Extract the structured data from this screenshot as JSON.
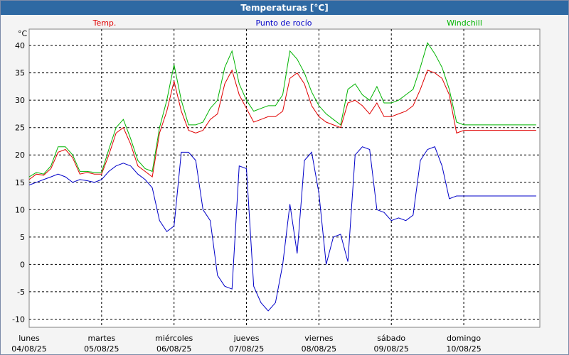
{
  "window": {
    "title": "Temperaturas [°C]"
  },
  "chart_data": {
    "type": "line",
    "title": "Temperaturas [°C]",
    "unit_label": "°C",
    "ylim": [
      -11.5,
      43
    ],
    "y_ticks": [
      -10,
      -5,
      0,
      5,
      10,
      15,
      20,
      25,
      30,
      35,
      40
    ],
    "x_range": [
      0,
      7.05
    ],
    "grid": true,
    "days": [
      {
        "name": "lunes",
        "date": "04/08/25"
      },
      {
        "name": "martes",
        "date": "05/08/25"
      },
      {
        "name": "miércoles",
        "date": "06/08/25"
      },
      {
        "name": "jueves",
        "date": "07/08/25"
      },
      {
        "name": "viernes",
        "date": "08/08/25"
      },
      {
        "name": "sábado",
        "date": "09/08/25"
      },
      {
        "name": "domingo",
        "date": "10/08/25"
      }
    ],
    "series": [
      {
        "name": "Temp.",
        "color": "#e00000",
        "x": [
          0,
          0.1,
          0.2,
          0.3,
          0.4,
          0.5,
          0.6,
          0.7,
          0.8,
          0.9,
          1.0,
          1.1,
          1.2,
          1.3,
          1.4,
          1.5,
          1.6,
          1.7,
          1.8,
          1.9,
          2.0,
          2.1,
          2.2,
          2.3,
          2.4,
          2.5,
          2.6,
          2.7,
          2.8,
          2.9,
          3.0,
          3.1,
          3.2,
          3.3,
          3.4,
          3.5,
          3.6,
          3.7,
          3.8,
          3.9,
          4.0,
          4.1,
          4.2,
          4.3,
          4.4,
          4.5,
          4.6,
          4.7,
          4.8,
          4.9,
          5.0,
          5.1,
          5.2,
          5.3,
          5.4,
          5.5,
          5.6,
          5.7,
          5.8,
          5.9,
          6.0,
          6.1,
          6.2,
          6.3,
          6.4,
          6.5,
          6.6,
          6.7,
          6.8,
          6.9,
          7.0
        ],
        "values": [
          15.5,
          16.5,
          16.3,
          17.5,
          20.5,
          21.0,
          19.5,
          16.5,
          16.8,
          16.5,
          16.5,
          20.0,
          24.0,
          25.0,
          22.0,
          18.0,
          17.0,
          16.0,
          24.0,
          28.0,
          33.5,
          28.0,
          24.5,
          24.0,
          24.5,
          26.5,
          27.5,
          33.0,
          35.5,
          31.0,
          28.5,
          26.0,
          26.5,
          27.0,
          27.0,
          28.0,
          34.0,
          35.0,
          33.0,
          29.0,
          27.0,
          26.0,
          25.5,
          25.0,
          29.5,
          30.0,
          29.0,
          27.5,
          29.5,
          27.0,
          27.0,
          27.5,
          28.0,
          29.0,
          32.0,
          35.5,
          35.0,
          34.0,
          31.0,
          24.0,
          24.5,
          24.5,
          24.5,
          24.5,
          24.5,
          24.5,
          24.5,
          24.5,
          24.5,
          24.5,
          24.5
        ]
      },
      {
        "name": "Punto de rocío",
        "color": "#0000c8",
        "x": [
          0,
          0.1,
          0.2,
          0.3,
          0.4,
          0.5,
          0.6,
          0.7,
          0.8,
          0.9,
          1.0,
          1.1,
          1.2,
          1.3,
          1.4,
          1.5,
          1.6,
          1.7,
          1.8,
          1.9,
          2.0,
          2.1,
          2.2,
          2.3,
          2.4,
          2.5,
          2.6,
          2.7,
          2.8,
          2.9,
          3.0,
          3.1,
          3.2,
          3.3,
          3.4,
          3.5,
          3.6,
          3.7,
          3.8,
          3.9,
          4.0,
          4.1,
          4.2,
          4.3,
          4.4,
          4.5,
          4.6,
          4.7,
          4.8,
          4.9,
          5.0,
          5.1,
          5.2,
          5.3,
          5.4,
          5.5,
          5.6,
          5.7,
          5.8,
          5.9,
          6.0,
          6.1,
          6.2,
          6.3,
          6.4,
          6.5,
          6.6,
          6.7,
          6.8,
          6.9,
          7.0
        ],
        "values": [
          14.5,
          15.0,
          15.5,
          16.0,
          16.5,
          16.0,
          15.0,
          15.5,
          15.3,
          15.0,
          15.5,
          17.0,
          18.0,
          18.5,
          18.0,
          16.5,
          15.5,
          14.0,
          8.0,
          6.0,
          7.0,
          20.5,
          20.5,
          19.0,
          10.0,
          8.0,
          -2.0,
          -4.0,
          -4.5,
          18.0,
          17.5,
          -4.0,
          -7.0,
          -8.5,
          -7.0,
          0.0,
          11.0,
          2.0,
          19.0,
          20.5,
          13.0,
          0.0,
          5.0,
          5.5,
          0.5,
          20.0,
          21.5,
          21.0,
          10.0,
          9.5,
          8.0,
          8.5,
          8.0,
          9.0,
          19.0,
          21.0,
          21.5,
          18.0,
          12.0,
          12.5,
          12.5,
          12.5,
          12.5,
          12.5,
          12.5,
          12.5,
          12.5,
          12.5,
          12.5,
          12.5,
          12.5
        ]
      },
      {
        "name": "Windchill",
        "color": "#00b400",
        "x": [
          0,
          0.1,
          0.2,
          0.3,
          0.4,
          0.5,
          0.6,
          0.7,
          0.8,
          0.9,
          1.0,
          1.1,
          1.2,
          1.3,
          1.4,
          1.5,
          1.6,
          1.7,
          1.8,
          1.9,
          2.0,
          2.1,
          2.2,
          2.3,
          2.4,
          2.5,
          2.6,
          2.7,
          2.8,
          2.9,
          3.0,
          3.1,
          3.2,
          3.3,
          3.4,
          3.5,
          3.6,
          3.7,
          3.8,
          3.9,
          4.0,
          4.1,
          4.2,
          4.3,
          4.4,
          4.5,
          4.6,
          4.7,
          4.8,
          4.9,
          5.0,
          5.1,
          5.2,
          5.3,
          5.4,
          5.5,
          5.6,
          5.7,
          5.8,
          5.9,
          6.0,
          6.1,
          6.2,
          6.3,
          6.4,
          6.5,
          6.6,
          6.7,
          6.8,
          6.9,
          7.0
        ],
        "values": [
          16.0,
          16.8,
          16.5,
          18.0,
          21.5,
          21.5,
          20.0,
          17.0,
          17.0,
          16.8,
          16.8,
          21.0,
          25.0,
          26.5,
          23.0,
          19.0,
          17.5,
          17.0,
          25.0,
          30.0,
          36.5,
          30.0,
          25.5,
          25.5,
          26.0,
          28.5,
          30.0,
          36.0,
          39.0,
          33.0,
          30.0,
          28.0,
          28.5,
          29.0,
          29.0,
          31.0,
          39.0,
          37.5,
          35.0,
          31.5,
          29.0,
          27.5,
          26.5,
          25.5,
          32.0,
          33.0,
          31.0,
          30.0,
          32.5,
          29.5,
          29.5,
          30.0,
          31.0,
          32.0,
          36.0,
          40.5,
          38.5,
          36.0,
          32.0,
          26.0,
          25.5,
          25.5,
          25.5,
          25.5,
          25.5,
          25.5,
          25.5,
          25.5,
          25.5,
          25.5,
          25.5
        ]
      }
    ]
  }
}
